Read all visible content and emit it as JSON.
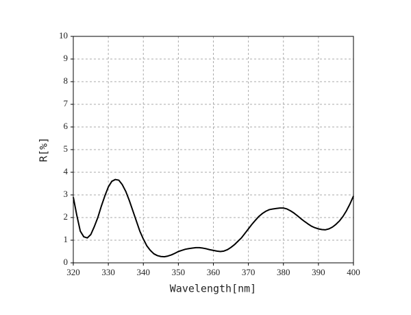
{
  "chart_data": {
    "type": "line",
    "x_label": "Wavelength[nm]",
    "y_label": "R[%]",
    "x": [
      320,
      321,
      322,
      323,
      324,
      325,
      326,
      327,
      328,
      329,
      330,
      331,
      332,
      333,
      334,
      335,
      336,
      337,
      338,
      339,
      340,
      341,
      342,
      343,
      344,
      345,
      346,
      347,
      348,
      349,
      350,
      351,
      352,
      353,
      354,
      355,
      356,
      357,
      358,
      359,
      360,
      361,
      362,
      363,
      364,
      365,
      366,
      367,
      368,
      369,
      370,
      371,
      372,
      373,
      374,
      375,
      376,
      377,
      378,
      379,
      380,
      381,
      382,
      383,
      384,
      385,
      386,
      387,
      388,
      389,
      390,
      391,
      392,
      393,
      394,
      395,
      396,
      397,
      398,
      399,
      400
    ],
    "values": [
      2.9,
      2.1,
      1.4,
      1.15,
      1.1,
      1.25,
      1.6,
      2.0,
      2.5,
      2.95,
      3.35,
      3.6,
      3.68,
      3.65,
      3.45,
      3.15,
      2.75,
      2.3,
      1.85,
      1.4,
      1.05,
      0.75,
      0.55,
      0.4,
      0.32,
      0.28,
      0.27,
      0.3,
      0.35,
      0.42,
      0.5,
      0.55,
      0.6,
      0.63,
      0.65,
      0.67,
      0.67,
      0.65,
      0.62,
      0.58,
      0.55,
      0.52,
      0.5,
      0.52,
      0.58,
      0.68,
      0.8,
      0.95,
      1.1,
      1.3,
      1.5,
      1.7,
      1.88,
      2.05,
      2.18,
      2.28,
      2.35,
      2.38,
      2.4,
      2.42,
      2.42,
      2.38,
      2.3,
      2.2,
      2.08,
      1.95,
      1.83,
      1.72,
      1.62,
      1.55,
      1.5,
      1.47,
      1.46,
      1.5,
      1.58,
      1.7,
      1.85,
      2.05,
      2.3,
      2.6,
      2.95
    ],
    "color": "#000000",
    "xlim": [
      320,
      400
    ],
    "xticks": [
      320,
      330,
      340,
      350,
      360,
      370,
      380,
      390,
      400
    ],
    "ylim": [
      0,
      10
    ],
    "yticks": [
      0,
      1,
      2,
      3,
      4,
      5,
      6,
      7,
      8,
      9,
      10
    ],
    "grid": true
  }
}
